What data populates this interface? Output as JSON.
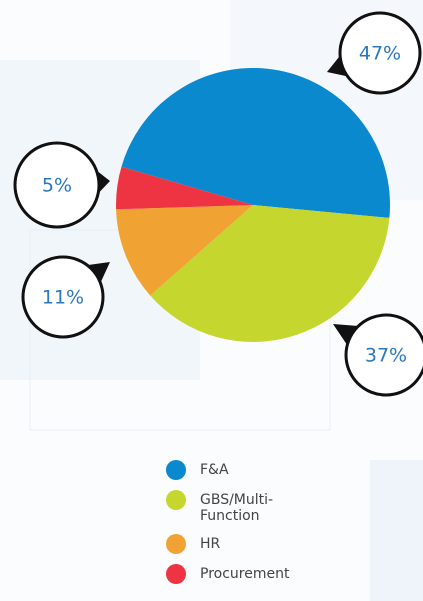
{
  "chart_data": {
    "type": "pie",
    "categories": [
      "F&A",
      "GBS/Multi-Function",
      "HR",
      "Procurement"
    ],
    "values": [
      47,
      37,
      11,
      5
    ],
    "value_labels": [
      "47%",
      "37%",
      "11%",
      "5%"
    ],
    "colors": [
      "#0a89cf",
      "#c5d62f",
      "#f0a332",
      "#ee3443"
    ],
    "legend": "bottom"
  }
}
